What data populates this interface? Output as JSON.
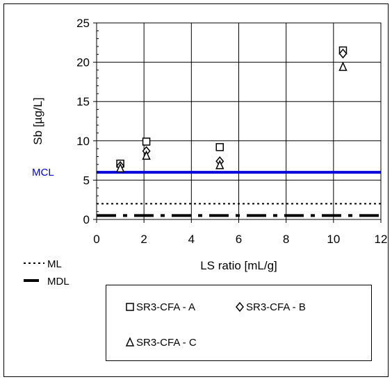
{
  "chart_data": {
    "type": "scatter",
    "xlabel": "LS ratio [mL/g]",
    "ylabel": "Sb [µg/L]",
    "xlim": [
      0,
      12
    ],
    "ylim": [
      0,
      25
    ],
    "xticks": [
      0,
      2,
      4,
      6,
      8,
      10,
      12
    ],
    "yticks": [
      0,
      5,
      10,
      15,
      20,
      25
    ],
    "grid": true,
    "legend_placement": "bottom",
    "series": [
      {
        "name": "SR3-CFA - A",
        "marker": "square",
        "x": [
          1.0,
          2.1,
          5.2,
          10.4
        ],
        "y": [
          7.1,
          9.9,
          9.2,
          21.5
        ]
      },
      {
        "name": "SR3-CFA - B",
        "marker": "diamond",
        "x": [
          1.0,
          2.1,
          5.2,
          10.4
        ],
        "y": [
          6.8,
          8.7,
          7.4,
          21.1
        ]
      },
      {
        "name": "SR3-CFA - C",
        "marker": "triangle",
        "x": [
          1.0,
          2.1,
          5.2,
          10.4
        ],
        "y": [
          6.5,
          8.1,
          6.9,
          19.4
        ]
      }
    ],
    "reference_lines": [
      {
        "label": "MCL",
        "y": 6,
        "style": "solid",
        "color": "#0000dd"
      },
      {
        "label": "ML",
        "y": 2,
        "style": "dotted",
        "color": "#000000"
      },
      {
        "label": "MDL",
        "y": 0.5,
        "style": "dashed",
        "color": "#000000"
      }
    ]
  }
}
